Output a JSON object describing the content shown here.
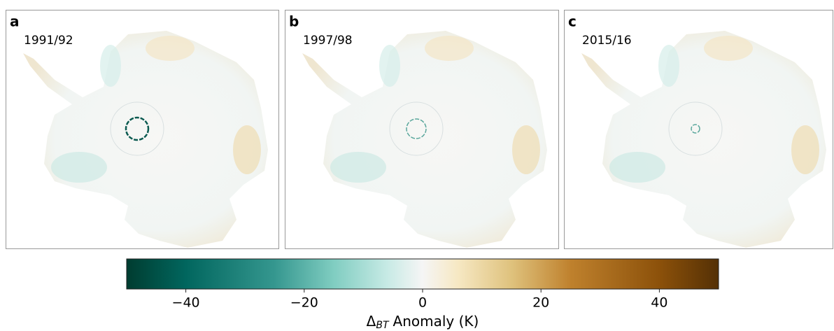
{
  "panels": [
    {
      "letter": "a",
      "label": "1991/92"
    },
    {
      "letter": "b",
      "label": "1997/98"
    },
    {
      "letter": "c",
      "label": "2015/16"
    }
  ],
  "colorbar": {
    "type": "colorbar",
    "lim": [
      -50,
      50
    ],
    "ticks": [
      {
        "value": -40,
        "label": "−40"
      },
      {
        "value": -20,
        "label": "−20"
      },
      0,
      20,
      40
    ],
    "label_symbol": "Δ",
    "label_subscript": "BT",
    "label_text": "Anomaly (K)"
  }
}
